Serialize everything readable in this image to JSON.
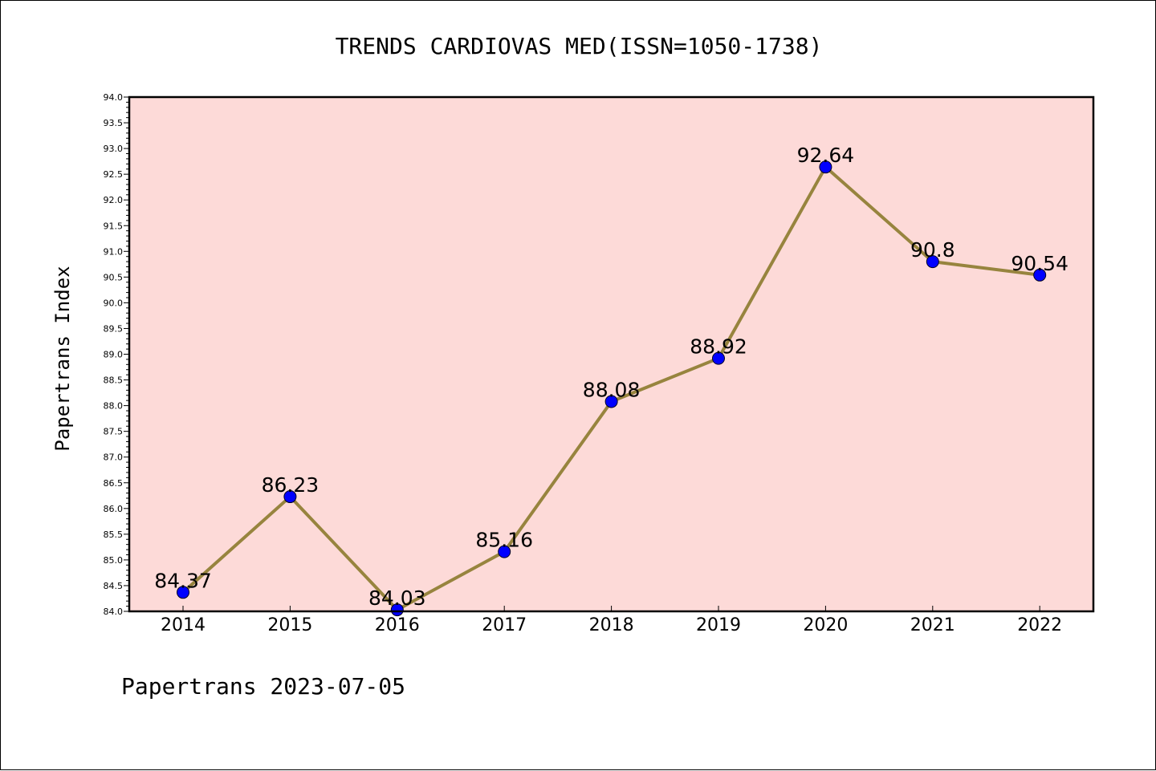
{
  "chart_data": {
    "type": "line",
    "title": "TRENDS CARDIOVAS MED(ISSN=1050-1738)",
    "xlabel": "",
    "ylabel": "Papertrans Index",
    "categories": [
      "2014",
      "2015",
      "2016",
      "2017",
      "2018",
      "2019",
      "2020",
      "2021",
      "2022"
    ],
    "values": [
      84.37,
      86.23,
      84.03,
      85.16,
      88.08,
      88.92,
      92.64,
      90.8,
      90.54
    ],
    "data_labels": [
      "84.37",
      "86.23",
      "84.03",
      "85.16",
      "88.08",
      "88.92",
      "92.64",
      "90.8",
      "90.54"
    ],
    "ylim": [
      84.0,
      94.0
    ],
    "yticks": [
      "84.0",
      "84.5",
      "85.0",
      "85.5",
      "86.0",
      "86.5",
      "87.0",
      "87.5",
      "88.0",
      "88.5",
      "89.0",
      "89.5",
      "90.0",
      "90.5",
      "91.0",
      "91.5",
      "92.0",
      "92.5",
      "93.0",
      "93.5",
      "94.0"
    ],
    "grid": false,
    "colors": {
      "plot_background": "#fddad8",
      "line": "#97843e",
      "marker": "#0000ff"
    }
  },
  "footer": "Papertrans 2023-07-05"
}
